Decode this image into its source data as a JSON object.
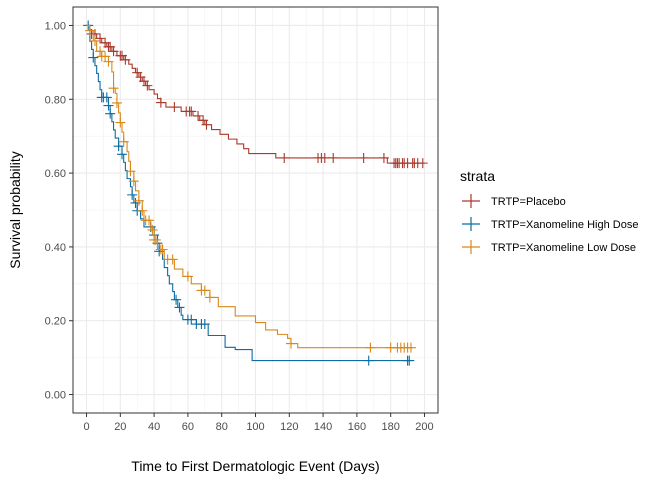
{
  "chart_data": {
    "type": "line",
    "subtype": "kaplan-meier-step",
    "title": "",
    "xlabel": "Time to First Dermatologic Event (Days)",
    "ylabel": "Survival probability",
    "xlim": [
      -8,
      208
    ],
    "ylim": [
      -0.05,
      1.05
    ],
    "x_ticks": [
      0,
      20,
      40,
      60,
      80,
      100,
      120,
      140,
      160,
      180,
      200
    ],
    "x_tick_labels": [
      "0",
      "20",
      "40",
      "60",
      "80",
      "100",
      "120",
      "140",
      "160",
      "180",
      "200"
    ],
    "y_ticks": [
      0,
      0.2,
      0.4,
      0.6,
      0.8,
      1.0
    ],
    "y_tick_labels": [
      "0.00",
      "0.20",
      "0.40",
      "0.60",
      "0.80",
      "1.00"
    ],
    "grid": true,
    "legend": {
      "title": "strata",
      "position": "right",
      "entries": [
        "TRTP=Placebo",
        "TRTP=Xanomeline High Dose",
        "TRTP=Xanomeline Low Dose"
      ]
    },
    "series": [
      {
        "name": "TRTP=Placebo",
        "color": "#A9392B",
        "steps": [
          [
            0,
            1.0
          ],
          [
            2,
            0.988
          ],
          [
            3,
            0.977
          ],
          [
            6,
            0.965
          ],
          [
            9,
            0.953
          ],
          [
            12,
            0.942
          ],
          [
            15,
            0.93
          ],
          [
            18,
            0.918
          ],
          [
            22,
            0.907
          ],
          [
            25,
            0.895
          ],
          [
            27,
            0.884
          ],
          [
            29,
            0.872
          ],
          [
            31,
            0.86
          ],
          [
            33,
            0.849
          ],
          [
            35,
            0.837
          ],
          [
            37,
            0.826
          ],
          [
            40,
            0.814
          ],
          [
            42,
            0.802
          ],
          [
            44,
            0.791
          ],
          [
            47,
            0.779
          ],
          [
            56,
            0.767
          ],
          [
            63,
            0.755
          ],
          [
            67,
            0.743
          ],
          [
            70,
            0.731
          ],
          [
            74,
            0.718
          ],
          [
            79,
            0.705
          ],
          [
            84,
            0.692
          ],
          [
            89,
            0.679
          ],
          [
            93,
            0.666
          ],
          [
            96,
            0.653
          ],
          [
            112,
            0.641
          ],
          [
            178,
            0.627
          ],
          [
            183,
            0.627
          ],
          [
            200,
            0.627
          ]
        ],
        "censor_x": [
          3,
          5,
          8,
          11,
          13,
          14,
          16,
          20,
          21,
          23,
          30,
          32,
          34,
          36,
          44,
          52,
          59,
          61,
          62,
          66,
          69,
          71,
          117,
          137,
          139,
          141,
          146,
          164,
          176,
          182,
          183,
          184,
          185,
          187,
          188,
          190,
          193,
          194,
          196,
          199
        ]
      },
      {
        "name": "TRTP=Xanomeline High Dose",
        "color": "#0C6CA3",
        "steps": [
          [
            0,
            1.0
          ],
          [
            2,
            0.957
          ],
          [
            3,
            0.935
          ],
          [
            4,
            0.913
          ],
          [
            5,
            0.891
          ],
          [
            6,
            0.87
          ],
          [
            7,
            0.848
          ],
          [
            8,
            0.826
          ],
          [
            9,
            0.805
          ],
          [
            13,
            0.783
          ],
          [
            14,
            0.761
          ],
          [
            15,
            0.739
          ],
          [
            16,
            0.717
          ],
          [
            17,
            0.695
          ],
          [
            19,
            0.673
          ],
          [
            21,
            0.651
          ],
          [
            22,
            0.629
          ],
          [
            23,
            0.607
          ],
          [
            24,
            0.585
          ],
          [
            26,
            0.563
          ],
          [
            27,
            0.541
          ],
          [
            28,
            0.519
          ],
          [
            30,
            0.498
          ],
          [
            32,
            0.476
          ],
          [
            34,
            0.454
          ],
          [
            40,
            0.432
          ],
          [
            42,
            0.41
          ],
          [
            43,
            0.388
          ],
          [
            45,
            0.366
          ],
          [
            46,
            0.344
          ],
          [
            48,
            0.322
          ],
          [
            49,
            0.3
          ],
          [
            51,
            0.279
          ],
          [
            52,
            0.257
          ],
          [
            54,
            0.236
          ],
          [
            56,
            0.215
          ],
          [
            57,
            0.203
          ],
          [
            65,
            0.191
          ],
          [
            72,
            0.16
          ],
          [
            82,
            0.128
          ],
          [
            88,
            0.122
          ],
          [
            98,
            0.092
          ],
          [
            191,
            0.092
          ]
        ],
        "censor_x": [
          1,
          4,
          9,
          10,
          12,
          13,
          14,
          19,
          21,
          27,
          29,
          30,
          38,
          40,
          42,
          43,
          53,
          55,
          60,
          62,
          65,
          68,
          70,
          167,
          190,
          191
        ]
      },
      {
        "name": "TRTP=Xanomeline Low Dose",
        "color": "#D9881A",
        "steps": [
          [
            0,
            1.0
          ],
          [
            2,
            0.986
          ],
          [
            4,
            0.958
          ],
          [
            6,
            0.93
          ],
          [
            9,
            0.916
          ],
          [
            13,
            0.902
          ],
          [
            15,
            0.874
          ],
          [
            16,
            0.83
          ],
          [
            17,
            0.816
          ],
          [
            18,
            0.79
          ],
          [
            19,
            0.763
          ],
          [
            20,
            0.737
          ],
          [
            21,
            0.711
          ],
          [
            22,
            0.685
          ],
          [
            24,
            0.658
          ],
          [
            25,
            0.632
          ],
          [
            26,
            0.605
          ],
          [
            28,
            0.578
          ],
          [
            29,
            0.552
          ],
          [
            31,
            0.525
          ],
          [
            33,
            0.498
          ],
          [
            34,
            0.472
          ],
          [
            38,
            0.446
          ],
          [
            40,
            0.419
          ],
          [
            42,
            0.393
          ],
          [
            46,
            0.366
          ],
          [
            52,
            0.34
          ],
          [
            57,
            0.32
          ],
          [
            62,
            0.3
          ],
          [
            68,
            0.282
          ],
          [
            73,
            0.263
          ],
          [
            78,
            0.238
          ],
          [
            88,
            0.213
          ],
          [
            100,
            0.195
          ],
          [
            106,
            0.175
          ],
          [
            113,
            0.163
          ],
          [
            119,
            0.152
          ],
          [
            121,
            0.138
          ],
          [
            125,
            0.127
          ],
          [
            193,
            0.127
          ]
        ],
        "censor_x": [
          2,
          5,
          8,
          9,
          11,
          13,
          16,
          18,
          20,
          22,
          26,
          28,
          31,
          33,
          35,
          37,
          39,
          40,
          41,
          44,
          45,
          48,
          51,
          60,
          68,
          70,
          73,
          121,
          168,
          180,
          184,
          186,
          188,
          190,
          192
        ]
      }
    ]
  }
}
